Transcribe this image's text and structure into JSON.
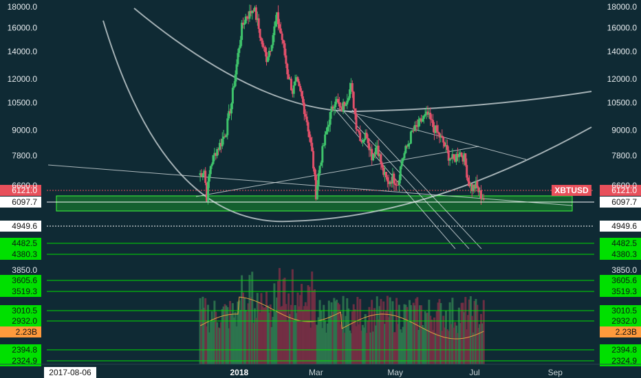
{
  "chart_data": {
    "type": "candlestick",
    "symbol": "XBTUSD",
    "last_price_label": "6121.0",
    "y_ticks": [
      "18000.0",
      "16000.0",
      "14000.0",
      "12000.0",
      "10500.0",
      "9000.0",
      "7800.0",
      "6600.0"
    ],
    "x_ticks": [
      "2017-08-06",
      "2018",
      "Mar",
      "May",
      "Jul",
      "Sep"
    ],
    "levels": [
      {
        "label": "6121.0",
        "color": "#e8505b",
        "style": "dotted",
        "value": 6121.0
      },
      {
        "label": "6097.7",
        "color": "#ffffff",
        "style": "solid",
        "value": 6097.7
      },
      {
        "label": "4949.6",
        "color": "#ffffff",
        "style": "dotted",
        "value": 4949.6
      },
      {
        "label": "4482.5",
        "color": "#00e000",
        "style": "solid",
        "value": 4482.5
      },
      {
        "label": "4380.3",
        "color": "#00e000",
        "style": "solid",
        "value": 4380.3
      },
      {
        "label": "3850.0",
        "color": "none",
        "style": "none",
        "value": 3850.0
      },
      {
        "label": "3605.6",
        "color": "#00e000",
        "style": "solid",
        "value": 3605.6
      },
      {
        "label": "3519.3",
        "color": "#00e000",
        "style": "solid",
        "value": 3519.3
      },
      {
        "label": "3010.5",
        "color": "#00e000",
        "style": "solid",
        "value": 3010.5
      },
      {
        "label": "2932.0",
        "color": "#00e000",
        "style": "solid",
        "value": 2932.0
      },
      {
        "label": "2.23B",
        "color": "#ff9a3c",
        "style": "none",
        "value": 2.23
      },
      {
        "label": "2394.8",
        "color": "#00e000",
        "style": "solid",
        "value": 2394.8
      },
      {
        "label": "2324.9",
        "color": "#00e000",
        "style": "solid",
        "value": 2324.9
      }
    ],
    "close_anchors": [
      [
        "2017-12-01",
        7000
      ],
      [
        "2017-12-05",
        7200
      ],
      [
        "2017-12-07",
        6200
      ],
      [
        "2017-12-10",
        7400
      ],
      [
        "2017-12-14",
        8000
      ],
      [
        "2017-12-18",
        8400
      ],
      [
        "2017-12-22",
        9000
      ],
      [
        "2017-12-26",
        10500
      ],
      [
        "2017-12-30",
        13000
      ],
      [
        "2018-01-03",
        16000
      ],
      [
        "2018-01-06",
        17000
      ],
      [
        "2018-01-09",
        17300
      ],
      [
        "2018-01-12",
        18000
      ],
      [
        "2018-01-15",
        16500
      ],
      [
        "2018-01-18",
        14800
      ],
      [
        "2018-01-22",
        13500
      ],
      [
        "2018-01-25",
        14400
      ],
      [
        "2018-01-30",
        17000
      ],
      [
        "2018-02-03",
        15000
      ],
      [
        "2018-02-07",
        12500
      ],
      [
        "2018-02-11",
        11200
      ],
      [
        "2018-02-14",
        11800
      ],
      [
        "2018-02-18",
        10800
      ],
      [
        "2018-02-22",
        9500
      ],
      [
        "2018-02-26",
        7900
      ],
      [
        "2018-03-01",
        6300
      ],
      [
        "2018-03-04",
        7400
      ],
      [
        "2018-03-08",
        8600
      ],
      [
        "2018-03-12",
        9800
      ],
      [
        "2018-03-16",
        10800
      ],
      [
        "2018-03-20",
        10000
      ],
      [
        "2018-03-24",
        10700
      ],
      [
        "2018-03-28",
        11500
      ],
      [
        "2018-04-01",
        9300
      ],
      [
        "2018-04-05",
        8500
      ],
      [
        "2018-04-09",
        8800
      ],
      [
        "2018-04-13",
        7800
      ],
      [
        "2018-04-17",
        8300
      ],
      [
        "2018-04-21",
        7200
      ],
      [
        "2018-04-25",
        6700
      ],
      [
        "2018-04-29",
        6900
      ],
      [
        "2018-05-03",
        6700
      ],
      [
        "2018-05-06",
        7600
      ],
      [
        "2018-05-10",
        8200
      ],
      [
        "2018-05-14",
        8900
      ],
      [
        "2018-05-18",
        9200
      ],
      [
        "2018-05-22",
        9600
      ],
      [
        "2018-05-26",
        9800
      ],
      [
        "2018-05-30",
        9200
      ],
      [
        "2018-06-03",
        8800
      ],
      [
        "2018-06-07",
        8400
      ],
      [
        "2018-06-11",
        7800
      ],
      [
        "2018-06-15",
        7600
      ],
      [
        "2018-06-19",
        8000
      ],
      [
        "2018-06-23",
        7700
      ],
      [
        "2018-06-26",
        6800
      ],
      [
        "2018-06-29",
        6500
      ],
      [
        "2018-07-02",
        6600
      ],
      [
        "2018-07-05",
        6300
      ],
      [
        "2018-07-08",
        6121
      ]
    ],
    "volume_avg_level": 2.23
  }
}
